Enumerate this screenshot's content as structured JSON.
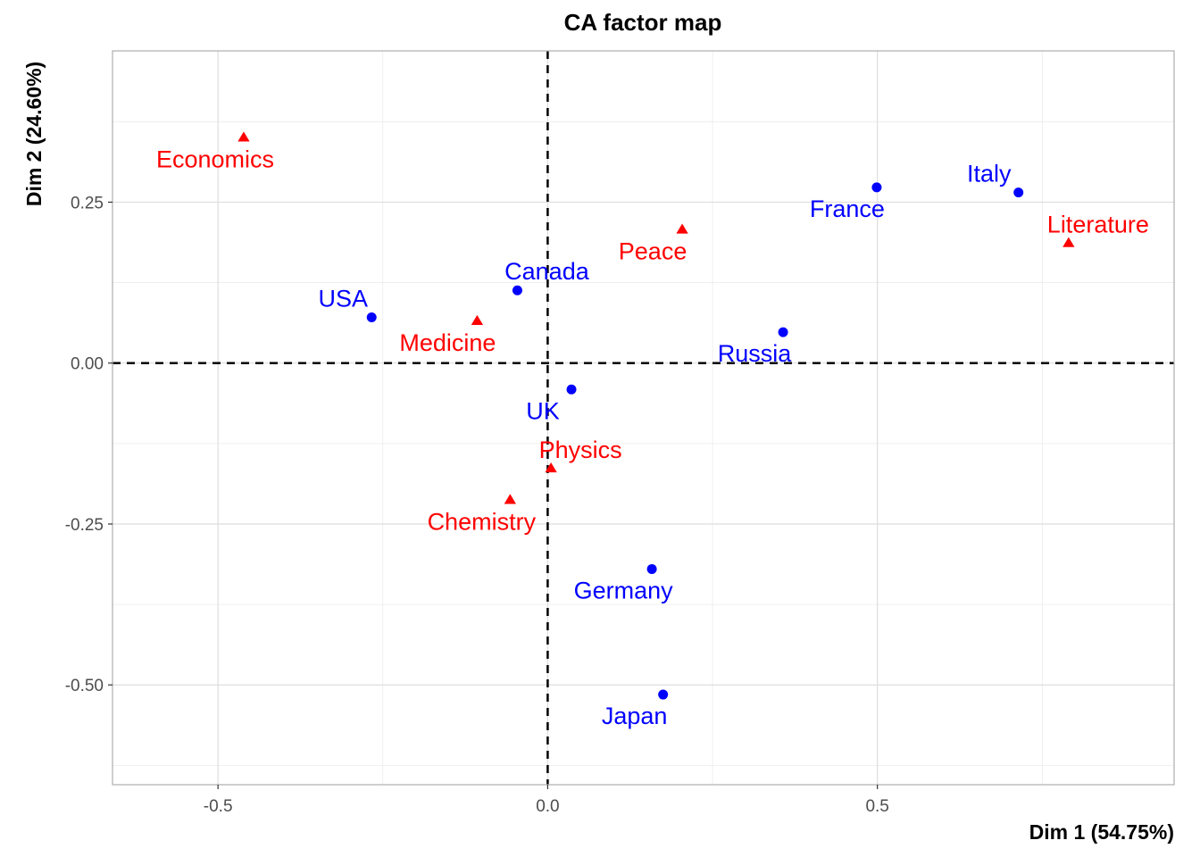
{
  "chart_data": {
    "type": "scatter",
    "title": "CA factor map",
    "xlabel": "Dim 1 (54.75%)",
    "ylabel": "Dim 2 (24.60%)",
    "xlim": [
      -0.66,
      0.95
    ],
    "ylim": [
      -0.655,
      0.485
    ],
    "x_ticks": [
      -0.5,
      0.0,
      0.5
    ],
    "x_tick_labels": [
      "-0.5",
      "0.0",
      "0.5"
    ],
    "y_ticks": [
      -0.5,
      -0.25,
      0.0,
      0.25
    ],
    "y_tick_labels": [
      "-0.50",
      "-0.25",
      "0.00",
      "0.25"
    ],
    "grid": true,
    "reference_lines": {
      "x": 0,
      "y": 0,
      "style": "dashed"
    },
    "series": [
      {
        "marker": "circle",
        "color": "#0000ff",
        "points": [
          {
            "label": "Italy",
            "x": 0.714,
            "y": 0.265
          },
          {
            "label": "France",
            "x": 0.499,
            "y": 0.273
          },
          {
            "label": "Canada",
            "x": -0.046,
            "y": 0.113
          },
          {
            "label": "USA",
            "x": -0.267,
            "y": 0.071
          },
          {
            "label": "Russia",
            "x": 0.357,
            "y": 0.048
          },
          {
            "label": "UK",
            "x": 0.036,
            "y": -0.041
          },
          {
            "label": "Germany",
            "x": 0.158,
            "y": -0.32
          },
          {
            "label": "Japan",
            "x": 0.175,
            "y": -0.515
          }
        ]
      },
      {
        "marker": "triangle",
        "color": "#ff0000",
        "points": [
          {
            "label": "Economics",
            "x": -0.461,
            "y": 0.35
          },
          {
            "label": "Literature",
            "x": 0.79,
            "y": 0.186
          },
          {
            "label": "Peace",
            "x": 0.204,
            "y": 0.207
          },
          {
            "label": "Medicine",
            "x": -0.107,
            "y": 0.065
          },
          {
            "label": "Physics",
            "x": 0.005,
            "y": -0.164
          },
          {
            "label": "Chemistry",
            "x": -0.057,
            "y": -0.213
          }
        ]
      }
    ]
  }
}
